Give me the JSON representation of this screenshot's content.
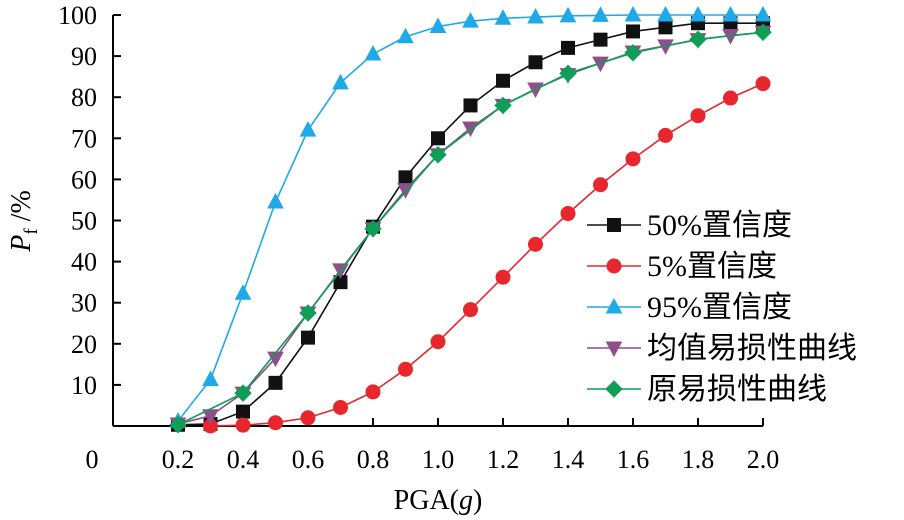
{
  "chart_data": {
    "type": "line",
    "title": "",
    "xlabel": "PGA(g)",
    "xlabel_parts": {
      "main": "PGA(",
      "italic": "g",
      "close": ")"
    },
    "ylabel": "Pf /%",
    "ylabel_parts": {
      "main": "P",
      "sub": "f",
      "rest": " /%"
    },
    "xlim": [
      0,
      2.0
    ],
    "ylim": [
      0,
      100
    ],
    "x_origin_label": "0",
    "x_ticks": [
      0.2,
      0.4,
      0.6,
      0.8,
      1.0,
      1.2,
      1.4,
      1.6,
      1.8,
      2.0
    ],
    "x_tick_labels": [
      "0.2",
      "0.4",
      "0.6",
      "0.8",
      "1.0",
      "1.2",
      "1.4",
      "1.6",
      "1.8",
      "2.0"
    ],
    "y_ticks": [
      10,
      20,
      30,
      40,
      50,
      60,
      70,
      80,
      90,
      100
    ],
    "y_tick_labels": [
      "10",
      "20",
      "30",
      "40",
      "50",
      "60",
      "70",
      "80",
      "90",
      "100"
    ],
    "grid": false,
    "legend_position": "center-right",
    "series": [
      {
        "name": "50%置信度",
        "color": "#111111",
        "marker": "square",
        "x": [
          0.2,
          0.3,
          0.4,
          0.5,
          0.6,
          0.7,
          0.8,
          0.9,
          1.0,
          1.1,
          1.2,
          1.3,
          1.4,
          1.5,
          1.6,
          1.7,
          1.8,
          1.9,
          2.0
        ],
        "y": [
          0.3,
          0.5,
          3.5,
          10.5,
          21.5,
          35,
          48.5,
          60.5,
          70,
          78,
          84,
          88.5,
          92,
          94,
          96,
          97,
          98,
          98,
          98
        ]
      },
      {
        "name": "5%置信度",
        "color": "#e8262d",
        "marker": "circle",
        "x": [
          0.3,
          0.4,
          0.5,
          0.6,
          0.7,
          0.8,
          0.9,
          1.0,
          1.1,
          1.2,
          1.3,
          1.4,
          1.5,
          1.6,
          1.7,
          1.8,
          1.9,
          2.0
        ],
        "y": [
          0,
          0.2,
          0.8,
          2,
          4.5,
          8.3,
          13.8,
          20.5,
          28.3,
          36.2,
          44.2,
          51.7,
          58.7,
          65,
          70.7,
          75.5,
          79.8,
          83.3
        ]
      },
      {
        "name": "95%置信度",
        "color": "#1fa9e8",
        "marker": "triangle-up",
        "x": [
          0.2,
          0.3,
          0.4,
          0.5,
          0.6,
          0.7,
          0.8,
          0.9,
          1.0,
          1.1,
          1.2,
          1.3,
          1.4,
          1.5,
          1.6,
          1.7,
          1.8,
          1.9,
          2.0
        ],
        "y": [
          1.2,
          11.3,
          32.3,
          54.5,
          72,
          83.5,
          90.5,
          94.7,
          97.2,
          98.5,
          99.2,
          99.5,
          99.8,
          99.9,
          100,
          100,
          100,
          100,
          100
        ]
      },
      {
        "name": "均值易损性曲线",
        "color": "#8e4f8b",
        "marker": "triangle-down",
        "x": [
          0.2,
          0.3,
          0.4,
          0.5,
          0.6,
          0.7,
          0.8,
          0.9,
          1.0,
          1.1,
          1.2,
          1.3,
          1.4,
          1.5,
          1.6,
          1.7,
          1.8,
          1.9,
          2.0
        ],
        "y": [
          0.5,
          2.5,
          8,
          16.5,
          27.5,
          38,
          48,
          57.5,
          66,
          72.5,
          78,
          82,
          85.5,
          88.3,
          91,
          92.5,
          94,
          95,
          95.8
        ]
      },
      {
        "name": "原易损性曲线",
        "color": "#0e9f56",
        "marker": "diamond",
        "x": [
          0.2,
          0.4,
          0.6,
          0.8,
          1.0,
          1.2,
          1.4,
          1.6,
          1.8,
          2.0
        ],
        "y": [
          0.3,
          8,
          27.5,
          48,
          66,
          78,
          85.8,
          90.8,
          94.1,
          95.8
        ]
      }
    ]
  }
}
